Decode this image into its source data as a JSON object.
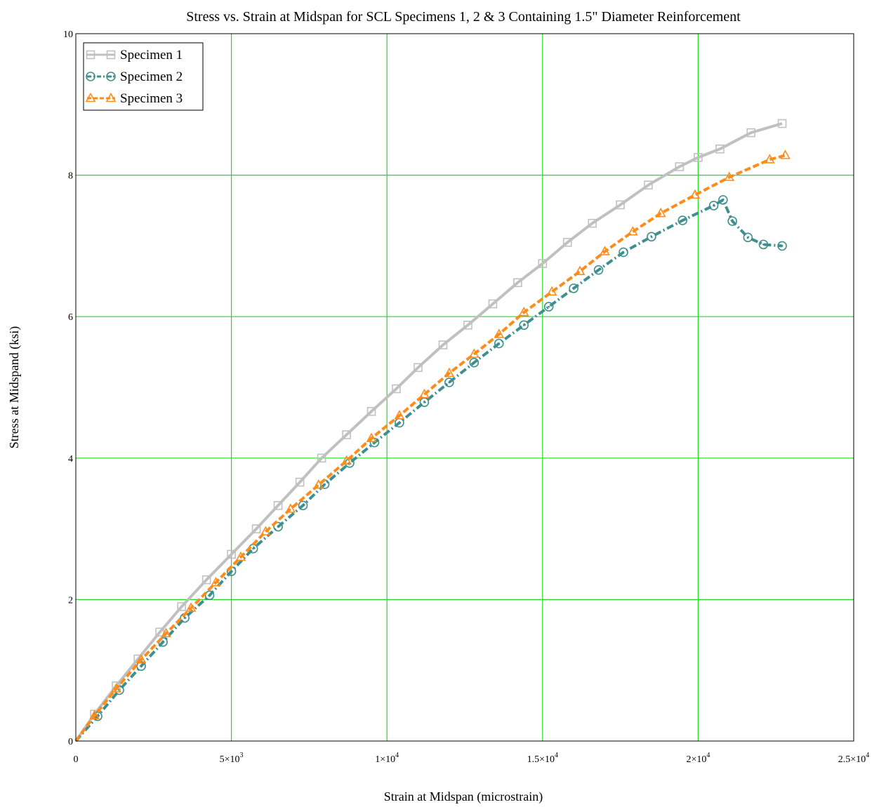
{
  "chart_data": {
    "type": "line",
    "title": "Stress vs. Strain at Midspan for SCL Specimens 1, 2 & 3 Containing 1.5\" Diameter Reinforcement",
    "xlabel": "Strain at Midspan (microstrain)",
    "ylabel": "Stress at Midspand (ksi)",
    "xlim": [
      0,
      25000
    ],
    "ylim": [
      0,
      10
    ],
    "grid": true,
    "grid_color": "#22dd22",
    "legend_position": "top-left",
    "x_ticks": [
      {
        "value": 0,
        "base": "0",
        "exp": ""
      },
      {
        "value": 5000,
        "base": "5×10",
        "exp": "3"
      },
      {
        "value": 10000,
        "base": "1×10",
        "exp": "4"
      },
      {
        "value": 15000,
        "base": "1.5×10",
        "exp": "4"
      },
      {
        "value": 20000,
        "base": "2×10",
        "exp": "4"
      },
      {
        "value": 25000,
        "base": "2.5×10",
        "exp": "4"
      }
    ],
    "y_ticks": [
      {
        "value": 0,
        "label": "0"
      },
      {
        "value": 2,
        "label": "2"
      },
      {
        "value": 4,
        "label": "4"
      },
      {
        "value": 6,
        "label": "6"
      },
      {
        "value": 8,
        "label": "8"
      },
      {
        "value": 10,
        "label": "10"
      }
    ],
    "series": [
      {
        "name": "Specimen 1",
        "color": "#c0c0c0",
        "marker": "square",
        "line_style": "solid",
        "x": [
          0,
          600,
          1300,
          2000,
          2700,
          3400,
          4200,
          5000,
          5800,
          6500,
          7200,
          7900,
          8700,
          9500,
          10300,
          11000,
          11800,
          12600,
          13400,
          14200,
          15000,
          15800,
          16600,
          17500,
          18400,
          19400,
          20000,
          20700,
          21700,
          22700
        ],
        "y": [
          0,
          0.38,
          0.78,
          1.16,
          1.54,
          1.9,
          2.28,
          2.64,
          3.0,
          3.33,
          3.66,
          4.0,
          4.33,
          4.66,
          4.98,
          5.28,
          5.6,
          5.88,
          6.18,
          6.48,
          6.75,
          7.05,
          7.32,
          7.58,
          7.86,
          8.12,
          8.25,
          8.37,
          8.6,
          8.73
        ]
      },
      {
        "name": "Specimen 2",
        "color": "#3f8f8f",
        "marker": "circle",
        "line_style": "dashdot",
        "x": [
          0,
          700,
          1400,
          2100,
          2800,
          3500,
          4300,
          5000,
          5700,
          6500,
          7300,
          8000,
          8800,
          9600,
          10400,
          11200,
          12000,
          12800,
          13600,
          14400,
          15200,
          16000,
          16800,
          17600,
          18500,
          19500,
          20500,
          20800,
          21100,
          21600,
          22100,
          22700
        ],
        "y": [
          0,
          0.35,
          0.72,
          1.06,
          1.4,
          1.74,
          2.06,
          2.4,
          2.72,
          3.03,
          3.33,
          3.63,
          3.93,
          4.22,
          4.5,
          4.79,
          5.07,
          5.35,
          5.62,
          5.88,
          6.14,
          6.4,
          6.66,
          6.91,
          7.13,
          7.36,
          7.57,
          7.65,
          7.35,
          7.12,
          7.02,
          7.0
        ]
      },
      {
        "name": "Specimen 3",
        "color": "#ff8c1a",
        "marker": "triangle",
        "line_style": "dashed",
        "x": [
          0,
          600,
          1300,
          2100,
          2900,
          3700,
          4500,
          5300,
          6100,
          6900,
          7800,
          8700,
          9500,
          10400,
          11200,
          12000,
          12800,
          13600,
          14400,
          15300,
          16200,
          17000,
          17900,
          18800,
          19900,
          21000,
          22300,
          22800
        ],
        "y": [
          0,
          0.36,
          0.74,
          1.15,
          1.52,
          1.88,
          2.24,
          2.6,
          2.96,
          3.28,
          3.62,
          3.96,
          4.28,
          4.6,
          4.9,
          5.2,
          5.47,
          5.75,
          6.06,
          6.35,
          6.64,
          6.92,
          7.2,
          7.46,
          7.72,
          7.97,
          8.22,
          8.28
        ]
      }
    ]
  }
}
